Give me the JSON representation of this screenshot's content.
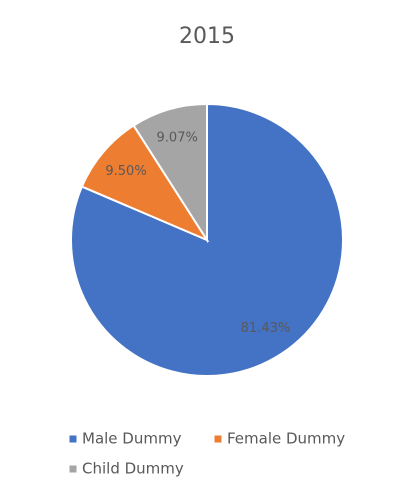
{
  "chart_data": {
    "type": "pie",
    "title": "2015",
    "categories": [
      "Male Dummy",
      "Female Dummy",
      "Child Dummy"
    ],
    "values": [
      81.43,
      9.5,
      9.07
    ],
    "value_labels": [
      "81.43%",
      "9.50%",
      "9.07%"
    ],
    "colors": [
      "#4472c4",
      "#ed7d31",
      "#a5a5a5"
    ],
    "legend": "bottom"
  }
}
